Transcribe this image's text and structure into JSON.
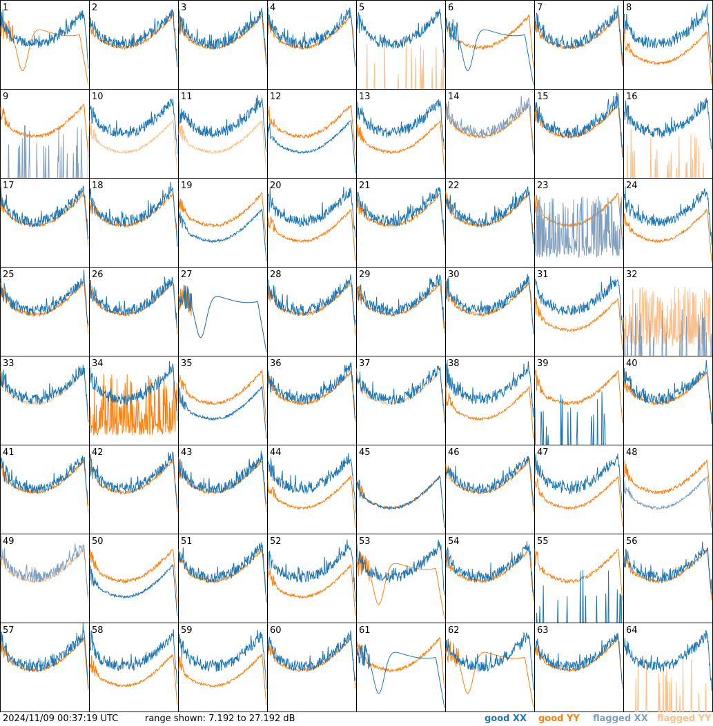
{
  "footer": {
    "timestamp": "2024/11/09 00:37:19 UTC",
    "range_text": "range shown: 7.192 to 27.192 dB"
  },
  "legend": [
    {
      "label": "good XX",
      "color": "#1f77b4"
    },
    {
      "label": "good YY",
      "color": "#ff7f0e"
    },
    {
      "label": "flagged XX",
      "color": "#7f9fbf"
    },
    {
      "label": "flagged YY",
      "color": "#ffbf87"
    }
  ],
  "chart_data": {
    "type": "line",
    "layout": "8x8 small multiples",
    "ylim": [
      7.192,
      27.192
    ],
    "yunit": "dB",
    "panels": [
      {
        "id": "1",
        "xx": "good",
        "yy": "good",
        "xx_shape": "normal",
        "yy_shape": "dip"
      },
      {
        "id": "2",
        "xx": "good",
        "yy": "good",
        "xx_shape": "normal",
        "yy_shape": "normal"
      },
      {
        "id": "3",
        "xx": "good",
        "yy": "good",
        "xx_shape": "normal",
        "yy_shape": "normal"
      },
      {
        "id": "4",
        "xx": "good",
        "yy": "good",
        "xx_shape": "normal",
        "yy_shape": "normal"
      },
      {
        "id": "5",
        "xx": "good",
        "yy": "flagged",
        "xx_shape": "normal",
        "yy_shape": "spikes"
      },
      {
        "id": "6",
        "xx": "good",
        "yy": "good",
        "xx_shape": "dip",
        "yy_shape": "normal"
      },
      {
        "id": "7",
        "xx": "good",
        "yy": "good",
        "xx_shape": "normal",
        "yy_shape": "normal"
      },
      {
        "id": "8",
        "xx": "good",
        "yy": "good",
        "xx_shape": "normal",
        "yy_shape": "low"
      },
      {
        "id": "9",
        "xx": "flagged",
        "yy": "good",
        "xx_shape": "spikes",
        "yy_shape": "normal"
      },
      {
        "id": "10",
        "xx": "good",
        "yy": "flagged",
        "xx_shape": "normal",
        "yy_shape": "low"
      },
      {
        "id": "11",
        "xx": "good",
        "yy": "flagged",
        "xx_shape": "normal",
        "yy_shape": "low"
      },
      {
        "id": "12",
        "xx": "good",
        "yy": "good",
        "xx_shape": "low",
        "yy_shape": "normal"
      },
      {
        "id": "13",
        "xx": "good",
        "yy": "good",
        "xx_shape": "normal",
        "yy_shape": "low"
      },
      {
        "id": "14",
        "xx": "flagged",
        "yy": "good",
        "xx_shape": "normal",
        "yy_shape": "normal"
      },
      {
        "id": "15",
        "xx": "good",
        "yy": "good",
        "xx_shape": "normal",
        "yy_shape": "normal"
      },
      {
        "id": "16",
        "xx": "good",
        "yy": "flagged",
        "xx_shape": "normal",
        "yy_shape": "spikes"
      },
      {
        "id": "17",
        "xx": "good",
        "yy": "good",
        "xx_shape": "normal",
        "yy_shape": "normal"
      },
      {
        "id": "18",
        "xx": "good",
        "yy": "good",
        "xx_shape": "normal",
        "yy_shape": "normal"
      },
      {
        "id": "19",
        "xx": "good",
        "yy": "good",
        "xx_shape": "low",
        "yy_shape": "normal"
      },
      {
        "id": "20",
        "xx": "good",
        "yy": "good",
        "xx_shape": "normal",
        "yy_shape": "low"
      },
      {
        "id": "21",
        "xx": "good",
        "yy": "good",
        "xx_shape": "normal",
        "yy_shape": "normal"
      },
      {
        "id": "22",
        "xx": "good",
        "yy": "good",
        "xx_shape": "normal",
        "yy_shape": "normal"
      },
      {
        "id": "23",
        "xx": "flagged",
        "yy": "good",
        "xx_shape": "noisy",
        "yy_shape": "normal"
      },
      {
        "id": "24",
        "xx": "good",
        "yy": "good",
        "xx_shape": "normal",
        "yy_shape": "low"
      },
      {
        "id": "25",
        "xx": "good",
        "yy": "good",
        "xx_shape": "normal",
        "yy_shape": "normal"
      },
      {
        "id": "26",
        "xx": "good",
        "yy": "good",
        "xx_shape": "normal",
        "yy_shape": "normal"
      },
      {
        "id": "27",
        "xx": "good",
        "yy": "good",
        "xx_shape": "dip",
        "yy_shape": "dip"
      },
      {
        "id": "28",
        "xx": "good",
        "yy": "good",
        "xx_shape": "normal",
        "yy_shape": "normal"
      },
      {
        "id": "29",
        "xx": "good",
        "yy": "good",
        "xx_shape": "normal",
        "yy_shape": "normal"
      },
      {
        "id": "30",
        "xx": "good",
        "yy": "good",
        "xx_shape": "normal",
        "yy_shape": "normal"
      },
      {
        "id": "31",
        "xx": "good",
        "yy": "good",
        "xx_shape": "normal",
        "yy_shape": "low"
      },
      {
        "id": "32",
        "xx": "flagged",
        "yy": "flagged",
        "xx_shape": "spikes",
        "yy_shape": "noisy"
      },
      {
        "id": "33",
        "xx": "good",
        "yy": "flagged",
        "xx_shape": "normal",
        "yy_shape": "normal"
      },
      {
        "id": "34",
        "xx": "good",
        "yy": "good",
        "xx_shape": "normal",
        "yy_shape": "noisy"
      },
      {
        "id": "35",
        "xx": "good",
        "yy": "good",
        "xx_shape": "low",
        "yy_shape": "normal"
      },
      {
        "id": "36",
        "xx": "good",
        "yy": "good",
        "xx_shape": "normal",
        "yy_shape": "normal"
      },
      {
        "id": "37",
        "xx": "good",
        "yy": "flagged",
        "xx_shape": "normal",
        "yy_shape": "normal"
      },
      {
        "id": "38",
        "xx": "good",
        "yy": "good",
        "xx_shape": "normal",
        "yy_shape": "low"
      },
      {
        "id": "39",
        "xx": "good",
        "yy": "good",
        "xx_shape": "spikes",
        "yy_shape": "normal"
      },
      {
        "id": "40",
        "xx": "good",
        "yy": "good",
        "xx_shape": "normal",
        "yy_shape": "normal"
      },
      {
        "id": "41",
        "xx": "good",
        "yy": "good",
        "xx_shape": "normal",
        "yy_shape": "normal"
      },
      {
        "id": "42",
        "xx": "good",
        "yy": "good",
        "xx_shape": "normal",
        "yy_shape": "normal"
      },
      {
        "id": "43",
        "xx": "good",
        "yy": "good",
        "xx_shape": "normal",
        "yy_shape": "normal"
      },
      {
        "id": "44",
        "xx": "good",
        "yy": "good",
        "xx_shape": "normal",
        "yy_shape": "low"
      },
      {
        "id": "45",
        "xx": "good",
        "yy": "good",
        "xx_shape": "low",
        "yy_shape": "low"
      },
      {
        "id": "46",
        "xx": "good",
        "yy": "good",
        "xx_shape": "normal",
        "yy_shape": "normal"
      },
      {
        "id": "47",
        "xx": "good",
        "yy": "good",
        "xx_shape": "normal",
        "yy_shape": "low"
      },
      {
        "id": "48",
        "xx": "flagged",
        "yy": "good",
        "xx_shape": "low",
        "yy_shape": "normal"
      },
      {
        "id": "49",
        "xx": "flagged",
        "yy": "flagged",
        "xx_shape": "normal",
        "yy_shape": "normal"
      },
      {
        "id": "50",
        "xx": "good",
        "yy": "good",
        "xx_shape": "low",
        "yy_shape": "normal"
      },
      {
        "id": "51",
        "xx": "good",
        "yy": "good",
        "xx_shape": "normal",
        "yy_shape": "normal"
      },
      {
        "id": "52",
        "xx": "good",
        "yy": "good",
        "xx_shape": "normal",
        "yy_shape": "low"
      },
      {
        "id": "53",
        "xx": "good",
        "yy": "good",
        "xx_shape": "normal",
        "yy_shape": "dip"
      },
      {
        "id": "54",
        "xx": "good",
        "yy": "good",
        "xx_shape": "normal",
        "yy_shape": "normal"
      },
      {
        "id": "55",
        "xx": "good",
        "yy": "good",
        "xx_shape": "spikes",
        "yy_shape": "normal"
      },
      {
        "id": "56",
        "xx": "good",
        "yy": "good",
        "xx_shape": "normal",
        "yy_shape": "normal"
      },
      {
        "id": "57",
        "xx": "good",
        "yy": "good",
        "xx_shape": "normal",
        "yy_shape": "normal"
      },
      {
        "id": "58",
        "xx": "good",
        "yy": "good",
        "xx_shape": "normal",
        "yy_shape": "low"
      },
      {
        "id": "59",
        "xx": "good",
        "yy": "good",
        "xx_shape": "normal",
        "yy_shape": "low"
      },
      {
        "id": "60",
        "xx": "good",
        "yy": "good",
        "xx_shape": "normal",
        "yy_shape": "normal"
      },
      {
        "id": "61",
        "xx": "good",
        "yy": "good",
        "xx_shape": "dip",
        "yy_shape": "normal"
      },
      {
        "id": "62",
        "xx": "good",
        "yy": "good",
        "xx_shape": "normal",
        "yy_shape": "dip"
      },
      {
        "id": "63",
        "xx": "good",
        "yy": "good",
        "xx_shape": "normal",
        "yy_shape": "normal"
      },
      {
        "id": "64",
        "xx": "good",
        "yy": "flagged",
        "xx_shape": "normal",
        "yy_shape": "spikes"
      }
    ]
  }
}
